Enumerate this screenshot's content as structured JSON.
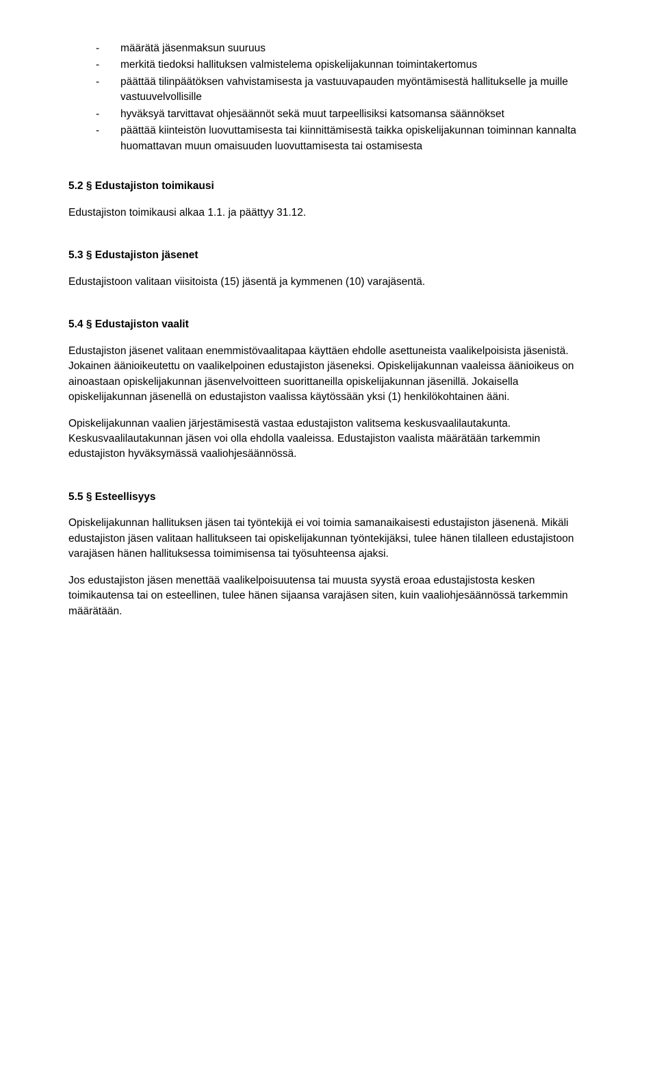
{
  "bullets": [
    "määrätä jäsenmaksun suuruus",
    "merkitä tiedoksi hallituksen valmistelema opiskelijakunnan toimintakertomus",
    "päättää tilinpäätöksen vahvistamisesta ja vastuuvapauden myöntämisestä hallitukselle ja muille vastuuvelvollisille",
    "hyväksyä tarvittavat ohjesäännöt sekä muut tarpeellisiksi katsomansa säännökset",
    "päättää kiinteistön luovuttamisesta tai kiinnittämisestä taikka opiskelijakunnan toiminnan kannalta huomattavan muun omaisuuden luovuttamisesta tai ostamisesta"
  ],
  "sections": {
    "s52": {
      "heading": "5.2 § Edustajiston toimikausi",
      "p1": "Edustajiston toimikausi alkaa 1.1. ja päättyy 31.12."
    },
    "s53": {
      "heading": "5.3 § Edustajiston jäsenet",
      "p1": "Edustajistoon valitaan viisitoista (15) jäsentä ja kymmenen (10) varajäsentä."
    },
    "s54": {
      "heading": "5.4 § Edustajiston vaalit",
      "p1": "Edustajiston jäsenet valitaan enemmistövaalitapaa käyttäen ehdolle asettuneista vaalikelpoisista jäsenistä. Jokainen äänioikeutettu on vaalikelpoinen edustajiston jäseneksi. Opiskelijakunnan vaaleissa äänioikeus on ainoastaan opiskelijakunnan jäsenvelvoitteen suorittaneilla opiskelijakunnan jäsenillä. Jokaisella opiskelijakunnan jäsenellä on edustajiston vaalissa käytössään yksi (1) henkilökohtainen ääni.",
      "p2": "Opiskelijakunnan vaalien järjestämisestä vastaa edustajiston valitsema keskusvaalilautakunta. Keskusvaalilautakunnan jäsen voi olla ehdolla vaaleissa. Edustajiston vaalista määrätään tarkemmin edustajiston hyväksymässä vaaliohjesäännössä."
    },
    "s55": {
      "heading": "5.5 § Esteellisyys",
      "p1": "Opiskelijakunnan hallituksen jäsen tai työntekijä ei voi toimia samanaikaisesti edustajiston jäsenenä. Mikäli edustajiston jäsen valitaan hallitukseen tai opiskelijakunnan työntekijäksi, tulee hänen tilalleen edustajistoon varajäsen hänen hallituksessa toimimisensa tai työsuhteensa ajaksi.",
      "p2": "Jos edustajiston jäsen menettää vaalikelpoisuutensa tai muusta syystä eroaa edustajistosta kesken toimikautensa tai on esteellinen, tulee hänen sijaansa varajäsen siten, kuin vaaliohjesäännössä tarkemmin määrätään."
    }
  }
}
